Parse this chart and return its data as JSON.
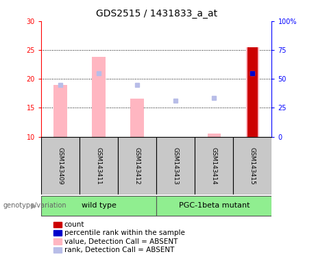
{
  "title": "GDS2515 / 1431833_a_at",
  "samples": [
    "GSM143409",
    "GSM143411",
    "GSM143412",
    "GSM143413",
    "GSM143414",
    "GSM143415"
  ],
  "group_labels": [
    "wild type",
    "PGC-1beta mutant"
  ],
  "group_color": "#90ee90",
  "group_ranges": [
    [
      0,
      2
    ],
    [
      3,
      5
    ]
  ],
  "ylim_left": [
    10,
    30
  ],
  "ylim_right": [
    0,
    100
  ],
  "yticks_left": [
    10,
    15,
    20,
    25,
    30
  ],
  "yticks_right": [
    0,
    25,
    50,
    75,
    100
  ],
  "ylabel_right_labels": [
    "0",
    "25",
    "50",
    "75",
    "100%"
  ],
  "bar_values": [
    19.0,
    23.8,
    16.6,
    null,
    10.5,
    25.5
  ],
  "bar_color_absent": "#ffb6c1",
  "rank_squares": [
    19.0,
    21.0,
    19.0,
    16.2,
    16.7,
    21.0
  ],
  "rank_color_absent": "#b8bde8",
  "count_bars": [
    null,
    null,
    null,
    null,
    null,
    25.5
  ],
  "count_color": "#cc0000",
  "percentile_dots": [
    null,
    null,
    null,
    null,
    null,
    21.0
  ],
  "percentile_color": "#0000cc",
  "dotted_lines": [
    15,
    20,
    25
  ],
  "background_samples": "#c8c8c8",
  "legend_items": [
    {
      "label": "count",
      "color": "#cc0000"
    },
    {
      "label": "percentile rank within the sample",
      "color": "#0000cc"
    },
    {
      "label": "value, Detection Call = ABSENT",
      "color": "#ffb6c1"
    },
    {
      "label": "rank, Detection Call = ABSENT",
      "color": "#b8bde8"
    }
  ],
  "title_fontsize": 10,
  "tick_fontsize": 7,
  "sample_fontsize": 6.5,
  "group_fontsize": 8,
  "legend_fontsize": 7.5
}
